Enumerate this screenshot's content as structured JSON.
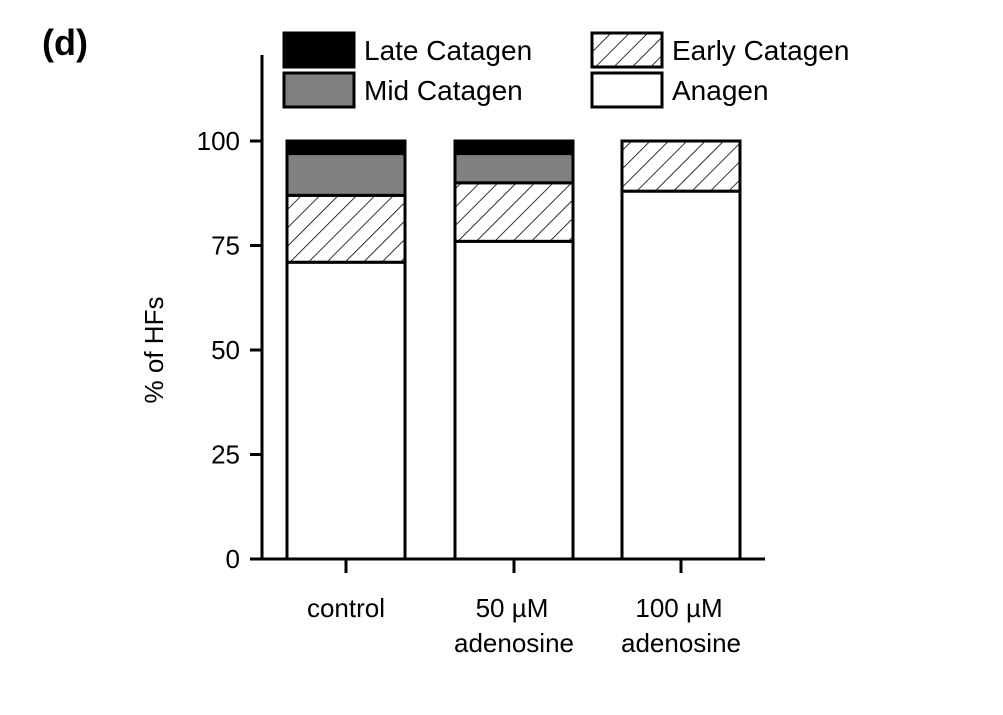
{
  "panel_label": "(d)",
  "chart_data": {
    "type": "bar",
    "stacked": true,
    "title": "",
    "xlabel": "",
    "ylabel": "% of HFs",
    "ylim": [
      0,
      100
    ],
    "yticks": [
      0,
      25,
      50,
      75,
      100
    ],
    "categories": [
      {
        "line1": "control",
        "line2": ""
      },
      {
        "line1": "50 µM",
        "line2": "adenosine"
      },
      {
        "line1": "100 µM",
        "line2": "adenosine"
      }
    ],
    "series": [
      {
        "name": "Anagen",
        "fill": "white",
        "values": [
          71,
          76,
          88
        ]
      },
      {
        "name": "Early Catagen",
        "fill": "hatch",
        "values": [
          16,
          14,
          12
        ]
      },
      {
        "name": "Mid Catagen",
        "fill": "#808080",
        "values": [
          10,
          7,
          0
        ]
      },
      {
        "name": "Late Catagen",
        "fill": "#000000",
        "values": [
          3,
          3,
          0
        ]
      }
    ],
    "legend": {
      "placement": "top",
      "order": [
        "Late Catagen",
        "Early Catagen",
        "Mid Catagen",
        "Anagen"
      ]
    },
    "grid": false
  },
  "colors": {
    "axis": "#000000",
    "mid": "#808080",
    "late": "#000000"
  }
}
